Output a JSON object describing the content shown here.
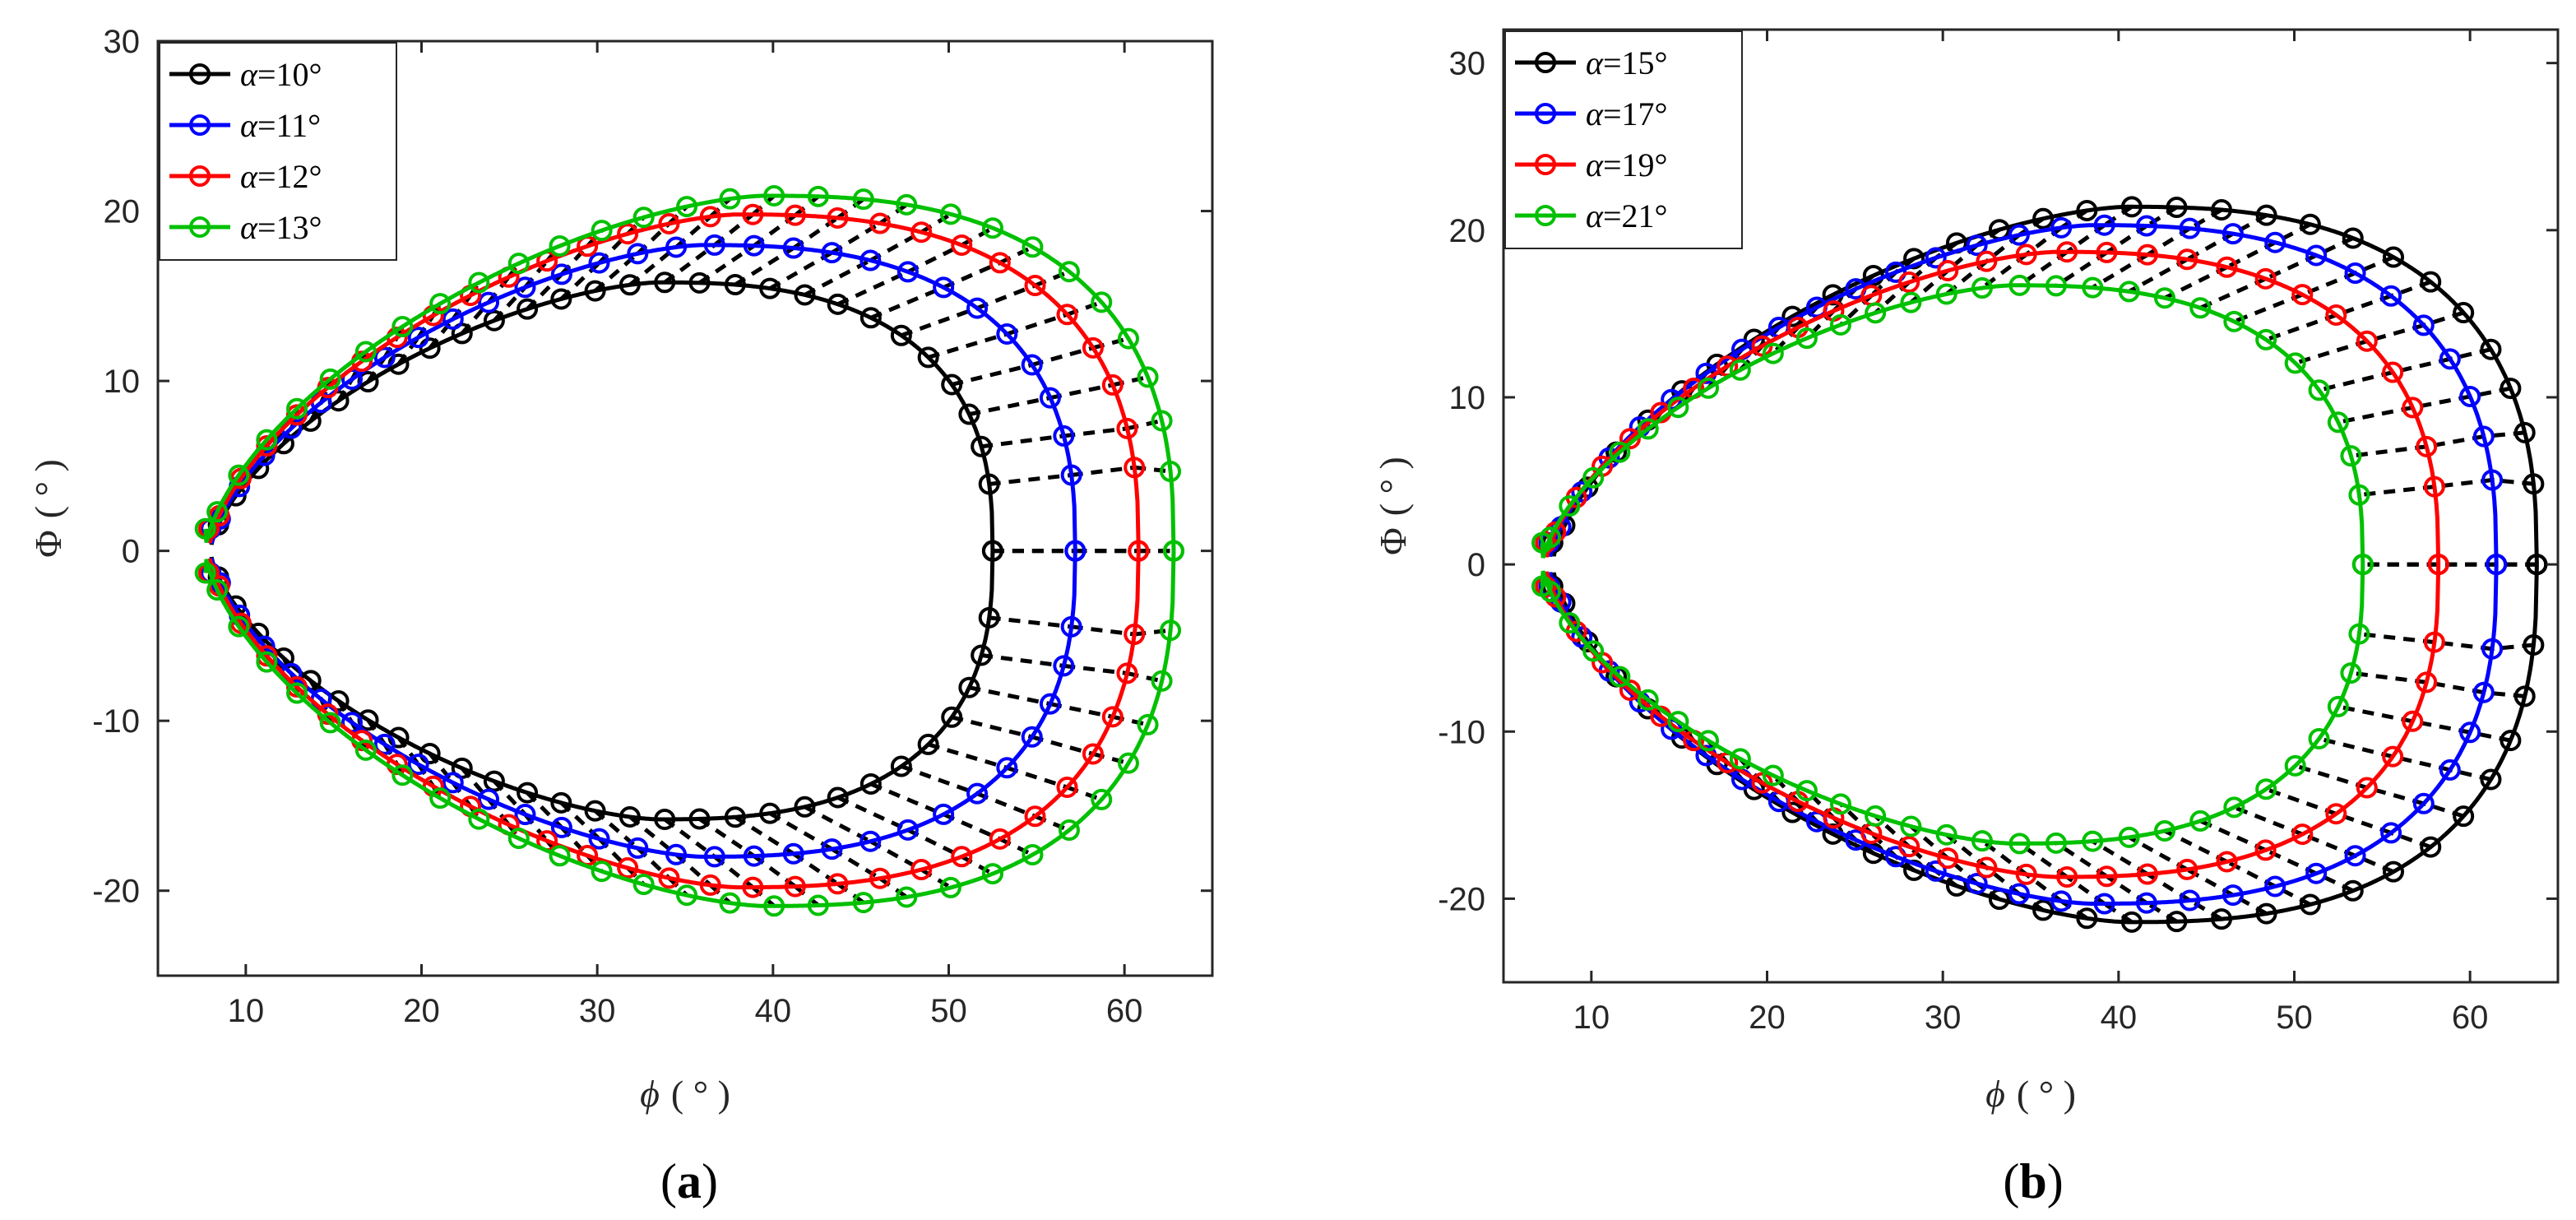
{
  "chart_data": [
    {
      "type": "line",
      "panel": "a",
      "caption": "(a)",
      "caption_parts": {
        "open": "(",
        "letter": "a",
        "close": ")"
      },
      "xlabel": {
        "symbol": "ϕ",
        "unit": "( ° )"
      },
      "ylabel": {
        "symbol": "Φ",
        "unit": "( ° )"
      },
      "xlim": [
        5,
        65
      ],
      "ylim": [
        -25,
        30
      ],
      "xticks": [
        10,
        20,
        30,
        40,
        50,
        60
      ],
      "yticks": [
        -20,
        -10,
        0,
        10,
        20,
        30
      ],
      "xtick_labels": [
        "10",
        "20",
        "30",
        "40",
        "50",
        "60"
      ],
      "ytick_labels": [
        "-20",
        "-10",
        "0",
        "10",
        "20",
        "30"
      ],
      "legend_position": "top-left",
      "connector_color": "#000000",
      "series": [
        {
          "name": "α=10°",
          "greek": "α",
          "label_rest": "=10°",
          "color": "#000000",
          "phi_min": 8.0,
          "phi_max": 52.5,
          "peak_phi": 33.5,
          "Phi_max": 15.8
        },
        {
          "name": "α=11°",
          "greek": "α",
          "label_rest": "=11°",
          "color": "#0000FF",
          "phi_min": 8.0,
          "phi_max": 57.2,
          "peak_phi": 36.0,
          "Phi_max": 18.0
        },
        {
          "name": "α=12°",
          "greek": "α",
          "label_rest": "=12°",
          "color": "#FF0000",
          "phi_min": 7.9,
          "phi_max": 60.8,
          "peak_phi": 38.0,
          "Phi_max": 19.8
        },
        {
          "name": "α=13°",
          "greek": "α",
          "label_rest": "=13°",
          "color": "#00C000",
          "phi_min": 7.7,
          "phi_max": 62.8,
          "peak_phi": 39.5,
          "Phi_max": 20.9
        }
      ]
    },
    {
      "type": "line",
      "panel": "b",
      "caption": "(b)",
      "caption_parts": {
        "open": "(",
        "letter": "b",
        "close": ")"
      },
      "xlabel": {
        "symbol": "ϕ",
        "unit": "( ° )"
      },
      "ylabel": {
        "symbol": "Φ",
        "unit": "( ° )"
      },
      "xlim": [
        5,
        65
      ],
      "ylim": [
        -25,
        32
      ],
      "xticks": [
        10,
        20,
        30,
        40,
        50,
        60
      ],
      "yticks": [
        -20,
        -10,
        0,
        10,
        20,
        30
      ],
      "xtick_labels": [
        "10",
        "20",
        "30",
        "40",
        "50",
        "60"
      ],
      "ytick_labels": [
        "-20",
        "-10",
        "0",
        "10",
        "20",
        "30"
      ],
      "legend_position": "top-left",
      "connector_color": "#000000",
      "series": [
        {
          "name": "α=15°",
          "greek": "α",
          "label_rest": "=15°",
          "color": "#000000",
          "phi_min": 7.8,
          "phi_max": 63.8,
          "peak_phi": 40.5,
          "Phi_max": 21.4
        },
        {
          "name": "α=17°",
          "greek": "α",
          "label_rest": "=17°",
          "color": "#0000FF",
          "phi_min": 7.6,
          "phi_max": 61.5,
          "peak_phi": 38.5,
          "Phi_max": 20.3
        },
        {
          "name": "α=19°",
          "greek": "α",
          "label_rest": "=19°",
          "color": "#FF0000",
          "phi_min": 7.4,
          "phi_max": 58.2,
          "peak_phi": 36.5,
          "Phi_max": 18.7
        },
        {
          "name": "α=21°",
          "greek": "α",
          "label_rest": "=21°",
          "color": "#00C000",
          "phi_min": 7.2,
          "phi_max": 53.9,
          "peak_phi": 34.0,
          "Phi_max": 16.7
        }
      ]
    }
  ]
}
